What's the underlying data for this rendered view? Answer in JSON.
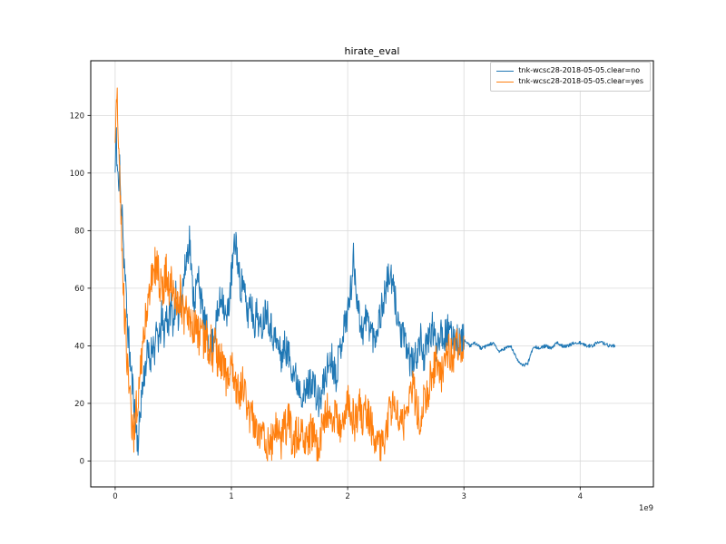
{
  "chart_data": {
    "type": "line",
    "title": "hirate_eval",
    "xlabel": "",
    "ylabel": "",
    "x_offset_label": "1e9",
    "x_unit_multiplier": 1000000000,
    "xlim": [
      -0.21,
      4.63
    ],
    "ylim": [
      -9,
      139
    ],
    "x_ticks": [
      0,
      1,
      2,
      3,
      4
    ],
    "y_ticks": [
      0,
      20,
      40,
      60,
      80,
      100,
      120
    ],
    "grid": true,
    "legend_position": "upper right",
    "samples_per_unit": 280,
    "noise_seed": 11,
    "series": [
      {
        "name": "tnk-wcsc28-2018-05-05.clear=no",
        "color": "#1f77b4",
        "noise_amplitude": 6,
        "noise_flat_after_x": 3.0,
        "noise_flat_amplitude": 0.6,
        "clip_min": 2,
        "clip_max": 131,
        "points": [
          [
            0.0,
            100
          ],
          [
            0.01,
            118
          ],
          [
            0.015,
            95
          ],
          [
            0.02,
            108
          ],
          [
            0.03,
            92
          ],
          [
            0.04,
            103
          ],
          [
            0.05,
            85
          ],
          [
            0.06,
            93
          ],
          [
            0.07,
            75
          ],
          [
            0.08,
            68
          ],
          [
            0.09,
            60
          ],
          [
            0.1,
            52
          ],
          [
            0.11,
            45
          ],
          [
            0.12,
            40
          ],
          [
            0.13,
            34
          ],
          [
            0.14,
            30
          ],
          [
            0.15,
            26
          ],
          [
            0.16,
            22
          ],
          [
            0.17,
            16
          ],
          [
            0.18,
            12
          ],
          [
            0.19,
            8
          ],
          [
            0.2,
            5
          ],
          [
            0.21,
            14
          ],
          [
            0.22,
            20
          ],
          [
            0.24,
            27
          ],
          [
            0.26,
            33
          ],
          [
            0.28,
            38
          ],
          [
            0.3,
            34
          ],
          [
            0.32,
            42
          ],
          [
            0.34,
            38
          ],
          [
            0.36,
            45
          ],
          [
            0.38,
            41
          ],
          [
            0.4,
            50
          ],
          [
            0.42,
            44
          ],
          [
            0.44,
            52
          ],
          [
            0.46,
            47
          ],
          [
            0.48,
            55
          ],
          [
            0.5,
            48
          ],
          [
            0.52,
            57
          ],
          [
            0.54,
            50
          ],
          [
            0.56,
            55
          ],
          [
            0.58,
            60
          ],
          [
            0.6,
            66
          ],
          [
            0.62,
            72
          ],
          [
            0.64,
            78
          ],
          [
            0.66,
            62
          ],
          [
            0.68,
            56
          ],
          [
            0.7,
            60
          ],
          [
            0.72,
            65
          ],
          [
            0.74,
            55
          ],
          [
            0.76,
            50
          ],
          [
            0.78,
            46
          ],
          [
            0.8,
            44
          ],
          [
            0.82,
            38
          ],
          [
            0.84,
            42
          ],
          [
            0.86,
            46
          ],
          [
            0.88,
            50
          ],
          [
            0.9,
            55
          ],
          [
            0.92,
            59
          ],
          [
            0.94,
            52
          ],
          [
            0.96,
            48
          ],
          [
            0.98,
            56
          ],
          [
            1.0,
            64
          ],
          [
            1.02,
            72
          ],
          [
            1.04,
            77
          ],
          [
            1.06,
            66
          ],
          [
            1.08,
            60
          ],
          [
            1.1,
            63
          ],
          [
            1.12,
            55
          ],
          [
            1.14,
            50
          ],
          [
            1.16,
            57
          ],
          [
            1.18,
            52
          ],
          [
            1.2,
            48
          ],
          [
            1.22,
            52
          ],
          [
            1.25,
            45
          ],
          [
            1.28,
            50
          ],
          [
            1.3,
            54
          ],
          [
            1.33,
            48
          ],
          [
            1.36,
            44
          ],
          [
            1.4,
            40
          ],
          [
            1.43,
            36
          ],
          [
            1.46,
            40
          ],
          [
            1.5,
            36
          ],
          [
            1.53,
            32
          ],
          [
            1.56,
            28
          ],
          [
            1.6,
            25
          ],
          [
            1.63,
            22
          ],
          [
            1.66,
            26
          ],
          [
            1.7,
            29
          ],
          [
            1.73,
            22
          ],
          [
            1.76,
            20
          ],
          [
            1.8,
            28
          ],
          [
            1.83,
            33
          ],
          [
            1.86,
            36
          ],
          [
            1.9,
            30
          ],
          [
            1.93,
            38
          ],
          [
            1.96,
            45
          ],
          [
            2.0,
            52
          ],
          [
            2.03,
            60
          ],
          [
            2.05,
            70
          ],
          [
            2.08,
            58
          ],
          [
            2.1,
            50
          ],
          [
            2.13,
            45
          ],
          [
            2.16,
            50
          ],
          [
            2.2,
            46
          ],
          [
            2.23,
            42
          ],
          [
            2.26,
            48
          ],
          [
            2.3,
            54
          ],
          [
            2.33,
            60
          ],
          [
            2.36,
            65
          ],
          [
            2.4,
            58
          ],
          [
            2.43,
            50
          ],
          [
            2.46,
            44
          ],
          [
            2.5,
            40
          ],
          [
            2.53,
            36
          ],
          [
            2.56,
            33
          ],
          [
            2.6,
            38
          ],
          [
            2.63,
            42
          ],
          [
            2.66,
            36
          ],
          [
            2.7,
            43
          ],
          [
            2.73,
            46
          ],
          [
            2.76,
            40
          ],
          [
            2.8,
            46
          ],
          [
            2.83,
            43
          ],
          [
            2.86,
            45
          ],
          [
            2.9,
            42
          ],
          [
            2.93,
            44
          ],
          [
            2.96,
            41
          ],
          [
            3.0,
            42
          ],
          [
            3.05,
            40
          ],
          [
            3.1,
            41
          ],
          [
            3.15,
            39
          ],
          [
            3.2,
            40
          ],
          [
            3.25,
            41
          ],
          [
            3.3,
            38
          ],
          [
            3.35,
            39
          ],
          [
            3.4,
            40
          ],
          [
            3.45,
            36
          ],
          [
            3.5,
            33
          ],
          [
            3.55,
            34
          ],
          [
            3.6,
            40
          ],
          [
            3.65,
            39
          ],
          [
            3.7,
            40
          ],
          [
            3.75,
            39
          ],
          [
            3.8,
            41
          ],
          [
            3.85,
            40
          ],
          [
            3.9,
            40
          ],
          [
            3.95,
            41
          ],
          [
            4.0,
            41
          ],
          [
            4.05,
            40
          ],
          [
            4.1,
            40
          ],
          [
            4.15,
            41
          ],
          [
            4.2,
            41
          ],
          [
            4.25,
            40
          ],
          [
            4.3,
            40
          ]
        ]
      },
      {
        "name": "tnk-wcsc28-2018-05-05.clear=yes",
        "color": "#ff7f0e",
        "noise_amplitude": 7,
        "clip_min": 0,
        "clip_max": 131,
        "points": [
          [
            0.0,
            112
          ],
          [
            0.01,
            131
          ],
          [
            0.02,
            121
          ],
          [
            0.03,
            104
          ],
          [
            0.04,
            96
          ],
          [
            0.05,
            84
          ],
          [
            0.06,
            72
          ],
          [
            0.07,
            62
          ],
          [
            0.08,
            52
          ],
          [
            0.09,
            44
          ],
          [
            0.1,
            36
          ],
          [
            0.11,
            30
          ],
          [
            0.12,
            25
          ],
          [
            0.13,
            20
          ],
          [
            0.14,
            16
          ],
          [
            0.15,
            12
          ],
          [
            0.16,
            9
          ],
          [
            0.17,
            14
          ],
          [
            0.18,
            18
          ],
          [
            0.2,
            24
          ],
          [
            0.22,
            32
          ],
          [
            0.24,
            40
          ],
          [
            0.26,
            48
          ],
          [
            0.28,
            55
          ],
          [
            0.3,
            60
          ],
          [
            0.32,
            64
          ],
          [
            0.34,
            67
          ],
          [
            0.36,
            70
          ],
          [
            0.38,
            63
          ],
          [
            0.4,
            58
          ],
          [
            0.42,
            62
          ],
          [
            0.44,
            66
          ],
          [
            0.46,
            58
          ],
          [
            0.48,
            62
          ],
          [
            0.5,
            56
          ],
          [
            0.52,
            60
          ],
          [
            0.54,
            53
          ],
          [
            0.56,
            58
          ],
          [
            0.58,
            52
          ],
          [
            0.6,
            48
          ],
          [
            0.62,
            54
          ],
          [
            0.64,
            46
          ],
          [
            0.66,
            50
          ],
          [
            0.68,
            44
          ],
          [
            0.7,
            48
          ],
          [
            0.72,
            42
          ],
          [
            0.74,
            46
          ],
          [
            0.76,
            40
          ],
          [
            0.78,
            44
          ],
          [
            0.8,
            38
          ],
          [
            0.82,
            42
          ],
          [
            0.84,
            36
          ],
          [
            0.86,
            40
          ],
          [
            0.88,
            34
          ],
          [
            0.9,
            37
          ],
          [
            0.93,
            32
          ],
          [
            0.96,
            28
          ],
          [
            1.0,
            33
          ],
          [
            1.03,
            28
          ],
          [
            1.06,
            24
          ],
          [
            1.1,
            26
          ],
          [
            1.13,
            20
          ],
          [
            1.16,
            16
          ],
          [
            1.2,
            13
          ],
          [
            1.23,
            9
          ],
          [
            1.26,
            12
          ],
          [
            1.3,
            7
          ],
          [
            1.33,
            3
          ],
          [
            1.36,
            10
          ],
          [
            1.4,
            13
          ],
          [
            1.43,
            7
          ],
          [
            1.46,
            11
          ],
          [
            1.5,
            14
          ],
          [
            1.53,
            5
          ],
          [
            1.56,
            9
          ],
          [
            1.6,
            12
          ],
          [
            1.63,
            3
          ],
          [
            1.66,
            8
          ],
          [
            1.7,
            11
          ],
          [
            1.73,
            5
          ],
          [
            1.76,
            8
          ],
          [
            1.8,
            14
          ],
          [
            1.83,
            18
          ],
          [
            1.86,
            12
          ],
          [
            1.9,
            16
          ],
          [
            1.93,
            10
          ],
          [
            1.96,
            15
          ],
          [
            2.0,
            22
          ],
          [
            2.03,
            17
          ],
          [
            2.06,
            13
          ],
          [
            2.1,
            19
          ],
          [
            2.13,
            14
          ],
          [
            2.16,
            18
          ],
          [
            2.2,
            13
          ],
          [
            2.23,
            9
          ],
          [
            2.26,
            6
          ],
          [
            2.3,
            4
          ],
          [
            2.33,
            12
          ],
          [
            2.36,
            17
          ],
          [
            2.4,
            20
          ],
          [
            2.43,
            14
          ],
          [
            2.46,
            11
          ],
          [
            2.5,
            16
          ],
          [
            2.53,
            22
          ],
          [
            2.56,
            26
          ],
          [
            2.6,
            18
          ],
          [
            2.63,
            15
          ],
          [
            2.66,
            21
          ],
          [
            2.7,
            26
          ],
          [
            2.73,
            31
          ],
          [
            2.76,
            35
          ],
          [
            2.8,
            30
          ],
          [
            2.83,
            34
          ],
          [
            2.86,
            38
          ],
          [
            2.9,
            36
          ],
          [
            2.93,
            39
          ],
          [
            2.96,
            41
          ],
          [
            3.0,
            40
          ]
        ]
      }
    ]
  }
}
